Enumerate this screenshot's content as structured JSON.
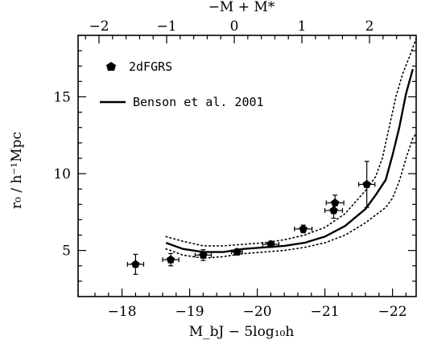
{
  "chart_data": {
    "type": "scatter",
    "title": "",
    "xlabel": "M_bJ − 5log₁₀h",
    "ylabel": "r₀ / h⁻¹Mpc",
    "top_xlabel": "−M + M*",
    "xlim": [
      -17.35,
      -22.35
    ],
    "ylim": [
      2.0,
      19.0
    ],
    "x_ticks": [
      "-18",
      "-19",
      "-20",
      "-21",
      "-22"
    ],
    "y_ticks": [
      "5",
      "10",
      "15"
    ],
    "top_ticks": [
      "-2",
      "-1",
      "0",
      "1",
      "2"
    ],
    "top_offset": -19.66,
    "legend": {
      "placement": "top-left",
      "points_label": "2dFGRS",
      "model_label": "Benson et al. 2001"
    },
    "series": [
      {
        "name": "2dFGRS",
        "style": "points",
        "points": [
          {
            "x": -18.2,
            "y": 4.1,
            "xerr": 0.12,
            "yerr": 0.65
          },
          {
            "x": -18.72,
            "y": 4.4,
            "xerr": 0.12,
            "yerr": 0.4
          },
          {
            "x": -19.2,
            "y": 4.7,
            "xerr": 0.12,
            "yerr": 0.35
          },
          {
            "x": -19.7,
            "y": 4.9,
            "xerr": 0.08,
            "yerr": 0.2
          },
          {
            "x": -20.2,
            "y": 5.4,
            "xerr": 0.12,
            "yerr": 0.2
          },
          {
            "x": -20.68,
            "y": 6.4,
            "xerr": 0.13,
            "yerr": 0.25
          },
          {
            "x": -21.13,
            "y": 7.6,
            "xerr": 0.13,
            "yerr": 0.5
          },
          {
            "x": -21.15,
            "y": 8.1,
            "xerr": 0.13,
            "yerr": 0.5
          },
          {
            "x": -21.62,
            "y": 9.3,
            "xerr": 0.12,
            "yerr": 1.5
          }
        ]
      },
      {
        "name": "Benson et al. 2001",
        "style": "line",
        "x": [
          -18.65,
          -18.9,
          -19.2,
          -19.5,
          -19.8,
          -20.1,
          -20.4,
          -20.7,
          -21.0,
          -21.3,
          -21.6,
          -21.75,
          -21.9,
          -22.0,
          -22.1,
          -22.2,
          -22.3
        ],
        "y": [
          5.5,
          5.1,
          4.9,
          4.9,
          5.1,
          5.2,
          5.3,
          5.5,
          5.9,
          6.6,
          7.7,
          8.6,
          9.6,
          11.2,
          13.0,
          15.2,
          16.8
        ]
      },
      {
        "name": "model upper bound",
        "style": "dotted",
        "x": [
          -18.65,
          -18.9,
          -19.2,
          -19.5,
          -19.8,
          -20.1,
          -20.4,
          -20.7,
          -21.0,
          -21.3,
          -21.6,
          -21.75,
          -21.85,
          -21.95,
          -22.05,
          -22.15,
          -22.25,
          -22.35
        ],
        "y": [
          5.9,
          5.6,
          5.3,
          5.3,
          5.4,
          5.5,
          5.7,
          6.0,
          6.5,
          7.4,
          8.9,
          9.8,
          11.0,
          13.0,
          15.0,
          16.5,
          17.6,
          18.8
        ]
      },
      {
        "name": "model lower bound",
        "style": "dotted",
        "x": [
          -18.65,
          -18.9,
          -19.2,
          -19.5,
          -19.8,
          -20.1,
          -20.4,
          -20.7,
          -21.0,
          -21.3,
          -21.6,
          -21.9,
          -22.0,
          -22.1,
          -22.2,
          -22.3,
          -22.35
        ],
        "y": [
          5.1,
          4.7,
          4.5,
          4.6,
          4.8,
          4.9,
          5.0,
          5.2,
          5.5,
          6.0,
          6.8,
          7.8,
          8.4,
          9.5,
          11.0,
          12.3,
          12.6
        ]
      }
    ]
  }
}
